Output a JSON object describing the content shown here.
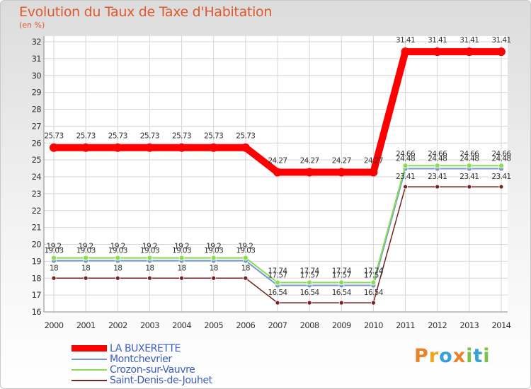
{
  "title": "Evolution du Taux de Taxe d'Habitation",
  "y_unit": "(en %)",
  "logo": {
    "text": "Proxiti",
    "colors": [
      "#e8832a",
      "#f2a21c",
      "#38a0d8",
      "#e8832a",
      "#7cc242",
      "#38a0d8",
      "#7cc242"
    ]
  },
  "chart_data": {
    "type": "line",
    "title": "Evolution du Taux de Taxe d'Habitation",
    "ylabel": "(en %)",
    "xlabel": "",
    "ylim": [
      16,
      32
    ],
    "yticks": [
      16,
      17,
      18,
      19,
      20,
      21,
      22,
      23,
      24,
      25,
      26,
      27,
      28,
      29,
      30,
      31,
      32
    ],
    "x": [
      "2000",
      "2001",
      "2002",
      "2003",
      "2004",
      "2005",
      "2006",
      "2007",
      "2008",
      "2009",
      "2010",
      "2011",
      "2012",
      "2013",
      "2014"
    ],
    "series": [
      {
        "name": "LA BUXERETTE",
        "color": "#ff0000",
        "values": [
          25.73,
          25.73,
          25.73,
          25.73,
          25.73,
          25.73,
          25.73,
          24.27,
          24.27,
          24.27,
          24.27,
          31.41,
          31.41,
          31.41,
          31.41
        ]
      },
      {
        "name": "Montchevrier",
        "color": "#7799cc",
        "values": [
          19.03,
          19.03,
          19.03,
          19.03,
          19.03,
          19.03,
          19.03,
          17.57,
          17.57,
          17.57,
          17.57,
          24.48,
          24.48,
          24.48,
          24.48
        ]
      },
      {
        "name": "Crozon-sur-Vauvre",
        "color": "#88dd55",
        "values": [
          19.2,
          19.2,
          19.2,
          19.2,
          19.2,
          19.2,
          19.2,
          17.74,
          17.74,
          17.74,
          17.74,
          24.66,
          24.66,
          24.66,
          24.66
        ]
      },
      {
        "name": "Saint-Denis-de-Jouhet",
        "color": "#772222",
        "values": [
          18,
          18,
          18,
          18,
          18,
          18,
          18,
          16.54,
          16.54,
          16.54,
          16.54,
          23.41,
          23.41,
          23.41,
          23.41
        ]
      }
    ],
    "data_labels": {
      "LA BUXERETTE": [
        "25.73",
        "25.73",
        "25.73",
        "25.73",
        "25.73",
        "25.73",
        "25.73",
        "24.27",
        "24.27",
        "24.27",
        "24.27",
        "31.41",
        "31.41",
        "31.41",
        "31.41"
      ],
      "Montchevrier": [
        "19.03",
        "19.03",
        "19.03",
        "19.03",
        "19.03",
        "19.03",
        "19.03",
        "17.57",
        "17.57",
        "17.57",
        "17.57",
        "24.48",
        "24.48",
        "24.48",
        "24.48"
      ],
      "Crozon-sur-Vauvre": [
        "19.2",
        "19.2",
        "19.2",
        "19.2",
        "19.2",
        "19.2",
        "19.2",
        "17.74",
        "17.74",
        "17.74",
        "17.74",
        "24.66",
        "24.66",
        "24.66",
        "24.66"
      ],
      "Saint-Denis-de-Jouhet": [
        "18",
        "18",
        "18",
        "18",
        "18",
        "18",
        "18",
        "16.54",
        "16.54",
        "16.54",
        "16.54",
        "23.41",
        "23.41",
        "23.41",
        "23.41"
      ]
    },
    "legend_position": "bottom-left"
  }
}
